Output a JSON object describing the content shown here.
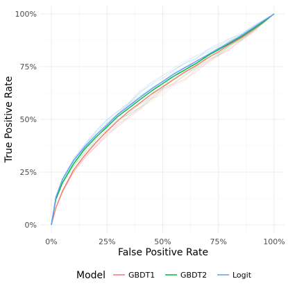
{
  "chart_data": {
    "type": "line",
    "xlabel": "False Positive Rate",
    "ylabel": "True Positive Rate",
    "xlim": [
      0,
      1
    ],
    "ylim": [
      0,
      1
    ],
    "x_ticks": [
      0,
      0.25,
      0.5,
      0.75,
      1
    ],
    "y_ticks": [
      0,
      0.25,
      0.5,
      0.75,
      1
    ],
    "x_tick_labels": [
      "0%",
      "25%",
      "50%",
      "75%",
      "100%"
    ],
    "y_tick_labels": [
      "0%",
      "25%",
      "50%",
      "75%",
      "100%"
    ],
    "grid": true,
    "legend": {
      "title": "Model",
      "placement": "bottom"
    },
    "series": [
      {
        "name": "GBDT1",
        "color": "#F8766D",
        "x": [
          0,
          0.02,
          0.05,
          0.1,
          0.15,
          0.2,
          0.25,
          0.3,
          0.35,
          0.4,
          0.45,
          0.5,
          0.55,
          0.6,
          0.65,
          0.7,
          0.75,
          0.8,
          0.85,
          0.9,
          0.95,
          1.0
        ],
        "y": [
          0,
          0.08,
          0.16,
          0.26,
          0.33,
          0.39,
          0.445,
          0.495,
          0.54,
          0.58,
          0.62,
          0.655,
          0.69,
          0.725,
          0.755,
          0.79,
          0.82,
          0.855,
          0.885,
          0.92,
          0.96,
          1.0
        ]
      },
      {
        "name": "GBDT2",
        "color": "#00BA38",
        "x": [
          0,
          0.02,
          0.05,
          0.1,
          0.15,
          0.2,
          0.25,
          0.3,
          0.35,
          0.4,
          0.45,
          0.5,
          0.55,
          0.6,
          0.65,
          0.7,
          0.75,
          0.8,
          0.85,
          0.9,
          0.95,
          1.0
        ],
        "y": [
          0,
          0.12,
          0.2,
          0.29,
          0.36,
          0.415,
          0.465,
          0.515,
          0.555,
          0.595,
          0.635,
          0.67,
          0.705,
          0.735,
          0.765,
          0.8,
          0.83,
          0.86,
          0.89,
          0.925,
          0.96,
          1.0
        ]
      },
      {
        "name": "Logit",
        "color": "#619CFF",
        "x": [
          0,
          0.02,
          0.05,
          0.1,
          0.15,
          0.2,
          0.25,
          0.3,
          0.35,
          0.4,
          0.45,
          0.5,
          0.55,
          0.6,
          0.65,
          0.7,
          0.75,
          0.8,
          0.85,
          0.9,
          0.95,
          1.0
        ],
        "y": [
          0,
          0.13,
          0.215,
          0.305,
          0.37,
          0.425,
          0.475,
          0.525,
          0.565,
          0.605,
          0.645,
          0.68,
          0.715,
          0.745,
          0.775,
          0.805,
          0.835,
          0.865,
          0.895,
          0.93,
          0.965,
          1.0
        ]
      }
    ]
  }
}
